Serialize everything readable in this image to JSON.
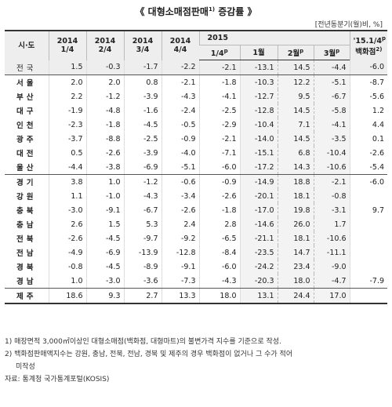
{
  "title": "《 대형소매점판매",
  "title_sup": "1)",
  "title_end": " 증감률 》",
  "unit": "[전년동분기(월)비, %]",
  "header": {
    "region": "시·도",
    "q1": [
      "2014",
      "1/4"
    ],
    "q2": [
      "2014",
      "2/4"
    ],
    "q3": [
      "2014",
      "3/4"
    ],
    "q4": [
      "2014",
      "4/4"
    ],
    "q5": [
      "2015",
      "1/4"
    ],
    "q5_sup": "p",
    "m1": "1월",
    "m2": "2월",
    "m2_sup": "p",
    "m3": "3월",
    "m3_sup": "p",
    "dept": [
      "'15.1/4",
      "백화점"
    ],
    "dept_sup": "p",
    "dept_sup2": "2)"
  },
  "rows": [
    {
      "region": "전국",
      "q1": "1.5",
      "q2": "-0.3",
      "q3": "-1.7",
      "q4": "-2.2",
      "q5": "-2.1",
      "m1": "-13.1",
      "m2": "14.5",
      "m3": "-4.4",
      "dept": "-6.0"
    },
    {
      "region": "서울",
      "q1": "2.0",
      "q2": "2.0",
      "q3": "0.8",
      "q4": "-2.1",
      "q5": "-1.8",
      "m1": "-10.3",
      "m2": "12.2",
      "m3": "-5.1",
      "dept": "-8.7"
    },
    {
      "region": "부산",
      "q1": "2.2",
      "q2": "-1.2",
      "q3": "-3.9",
      "q4": "-4.3",
      "q5": "-4.1",
      "m1": "-12.7",
      "m2": "9.5",
      "m3": "-6.7",
      "dept": "-5.6"
    },
    {
      "region": "대구",
      "q1": "-1.9",
      "q2": "-4.8",
      "q3": "-1.6",
      "q4": "-2.4",
      "q5": "-2.5",
      "m1": "-12.8",
      "m2": "14.5",
      "m3": "-5.8",
      "dept": "1.2"
    },
    {
      "region": "인천",
      "q1": "-2.3",
      "q2": "-1.8",
      "q3": "-4.5",
      "q4": "-0.5",
      "q5": "-2.9",
      "m1": "-10.4",
      "m2": "7.1",
      "m3": "-4.1",
      "dept": "4.4"
    },
    {
      "region": "광주",
      "q1": "-3.7",
      "q2": "-8.8",
      "q3": "-2.5",
      "q4": "-0.9",
      "q5": "-2.1",
      "m1": "-14.0",
      "m2": "14.5",
      "m3": "-3.5",
      "dept": "0.1"
    },
    {
      "region": "대전",
      "q1": "0.5",
      "q2": "-2.6",
      "q3": "-3.9",
      "q4": "-4.0",
      "q5": "-7.1",
      "m1": "-15.1",
      "m2": "6.8",
      "m3": "-10.4",
      "dept": "-2.6"
    },
    {
      "region": "울산",
      "q1": "-4.4",
      "q2": "-3.8",
      "q3": "-6.9",
      "q4": "-5.1",
      "q5": "-6.0",
      "m1": "-17.2",
      "m2": "14.3",
      "m3": "-10.6",
      "dept": "-5.4"
    },
    {
      "region": "경기",
      "q1": "3.8",
      "q2": "1.0",
      "q3": "-1.2",
      "q4": "-0.6",
      "q5": "-0.9",
      "m1": "-14.9",
      "m2": "18.8",
      "m3": "-2.1",
      "dept": "-6.0"
    },
    {
      "region": "강원",
      "q1": "1.1",
      "q2": "-1.0",
      "q3": "-4.3",
      "q4": "-3.4",
      "q5": "-2.6",
      "m1": "-20.1",
      "m2": "18.1",
      "m3": "-0.8",
      "dept": ""
    },
    {
      "region": "충북",
      "q1": "-3.0",
      "q2": "-9.1",
      "q3": "-6.7",
      "q4": "-2.6",
      "q5": "-1.8",
      "m1": "-17.0",
      "m2": "19.8",
      "m3": "-3.1",
      "dept": "9.7"
    },
    {
      "region": "충남",
      "q1": "2.6",
      "q2": "1.5",
      "q3": "5.3",
      "q4": "2.4",
      "q5": "2.8",
      "m1": "-14.6",
      "m2": "26.0",
      "m3": "1.7",
      "dept": ""
    },
    {
      "region": "전북",
      "q1": "-2.6",
      "q2": "-4.5",
      "q3": "-9.7",
      "q4": "-9.2",
      "q5": "-6.5",
      "m1": "-21.1",
      "m2": "18.1",
      "m3": "-10.6",
      "dept": ""
    },
    {
      "region": "전남",
      "q1": "-4.9",
      "q2": "-6.9",
      "q3": "-13.9",
      "q4": "-12.8",
      "q5": "-8.4",
      "m1": "-23.5",
      "m2": "14.7",
      "m3": "-11.1",
      "dept": ""
    },
    {
      "region": "경북",
      "q1": "-0.8",
      "q2": "-4.5",
      "q3": "-8.9",
      "q4": "-9.1",
      "q5": "-6.0",
      "m1": "-24.2",
      "m2": "23.4",
      "m3": "-9.0",
      "dept": ""
    },
    {
      "region": "경남",
      "q1": "1.0",
      "q2": "-3.0",
      "q3": "-3.6",
      "q4": "-7.3",
      "q5": "-4.3",
      "m1": "-20.3",
      "m2": "18.0",
      "m3": "-4.7",
      "dept": "-7.9"
    },
    {
      "region": "제주",
      "q1": "18.6",
      "q2": "9.3",
      "q3": "2.7",
      "q4": "13.3",
      "q5": "18.0",
      "m1": "13.1",
      "m2": "24.4",
      "m3": "17.0",
      "dept": ""
    }
  ],
  "notes": {
    "n1": "1) 매장면적 3,000㎡이상인 대형소매점(백화점, 대형마트)의 불변가격 지수를 기준으로 작성.",
    "n2": "2) 백화점판매액지수는 강원, 충남, 전북, 전남, 경북 및 제주의 경우 백화점이 없거나 그 수가 적어",
    "n2b": "미작성",
    "source": "자료: 통계청 국가통계포털(KOSIS)"
  }
}
